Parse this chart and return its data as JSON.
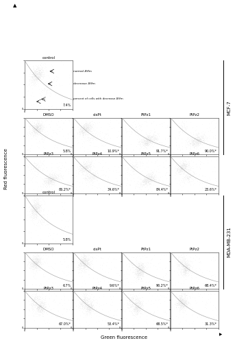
{
  "mcf7_panels": [
    {
      "label": "DMSO",
      "pct": "5.8%",
      "star": false
    },
    {
      "label": "cisPt",
      "pct": "10.9%",
      "star": true
    },
    {
      "label": "PtPz1",
      "pct": "91.7%",
      "star": true
    },
    {
      "label": "PtPz2",
      "pct": "90.0%",
      "star": true
    },
    {
      "label": "PtPz3",
      "pct": "86.2%",
      "star": true
    },
    {
      "label": "PtPz4",
      "pct": "34.6%",
      "star": true
    },
    {
      "label": "PtPz5",
      "pct": "84.4%",
      "star": true
    },
    {
      "label": "PtPz6",
      "pct": "23.6%",
      "star": true
    }
  ],
  "mda_panels": [
    {
      "label": "DMSO",
      "pct": "6.7%",
      "star": false
    },
    {
      "label": "cisPt",
      "pct": "9.6%",
      "star": true
    },
    {
      "label": "PtPz1",
      "pct": "90.2%",
      "star": true
    },
    {
      "label": "PtPz2",
      "pct": "68.4%",
      "star": true
    },
    {
      "label": "PtPz3",
      "pct": "67.0%",
      "star": true
    },
    {
      "label": "PtPz4",
      "pct": "53.4%",
      "star": true
    },
    {
      "label": "PtPz5",
      "pct": "68.5%",
      "star": true
    },
    {
      "label": "PtPz6",
      "pct": "31.3%",
      "star": true
    }
  ],
  "control_mcf7_pct": "7.4%",
  "control_mda_pct": "5.8%",
  "xlabel": "Green fluorescence",
  "ylabel": "Red fluorescence",
  "label_mcf7": "MCF-7",
  "label_mda": "MDA-MB-231",
  "arrow_label_normal": "normal ΔΨm",
  "arrow_label_decrease": "decrease ΔΨm",
  "arrow_label_pct": "percent of cells with decrease ΔΨm"
}
